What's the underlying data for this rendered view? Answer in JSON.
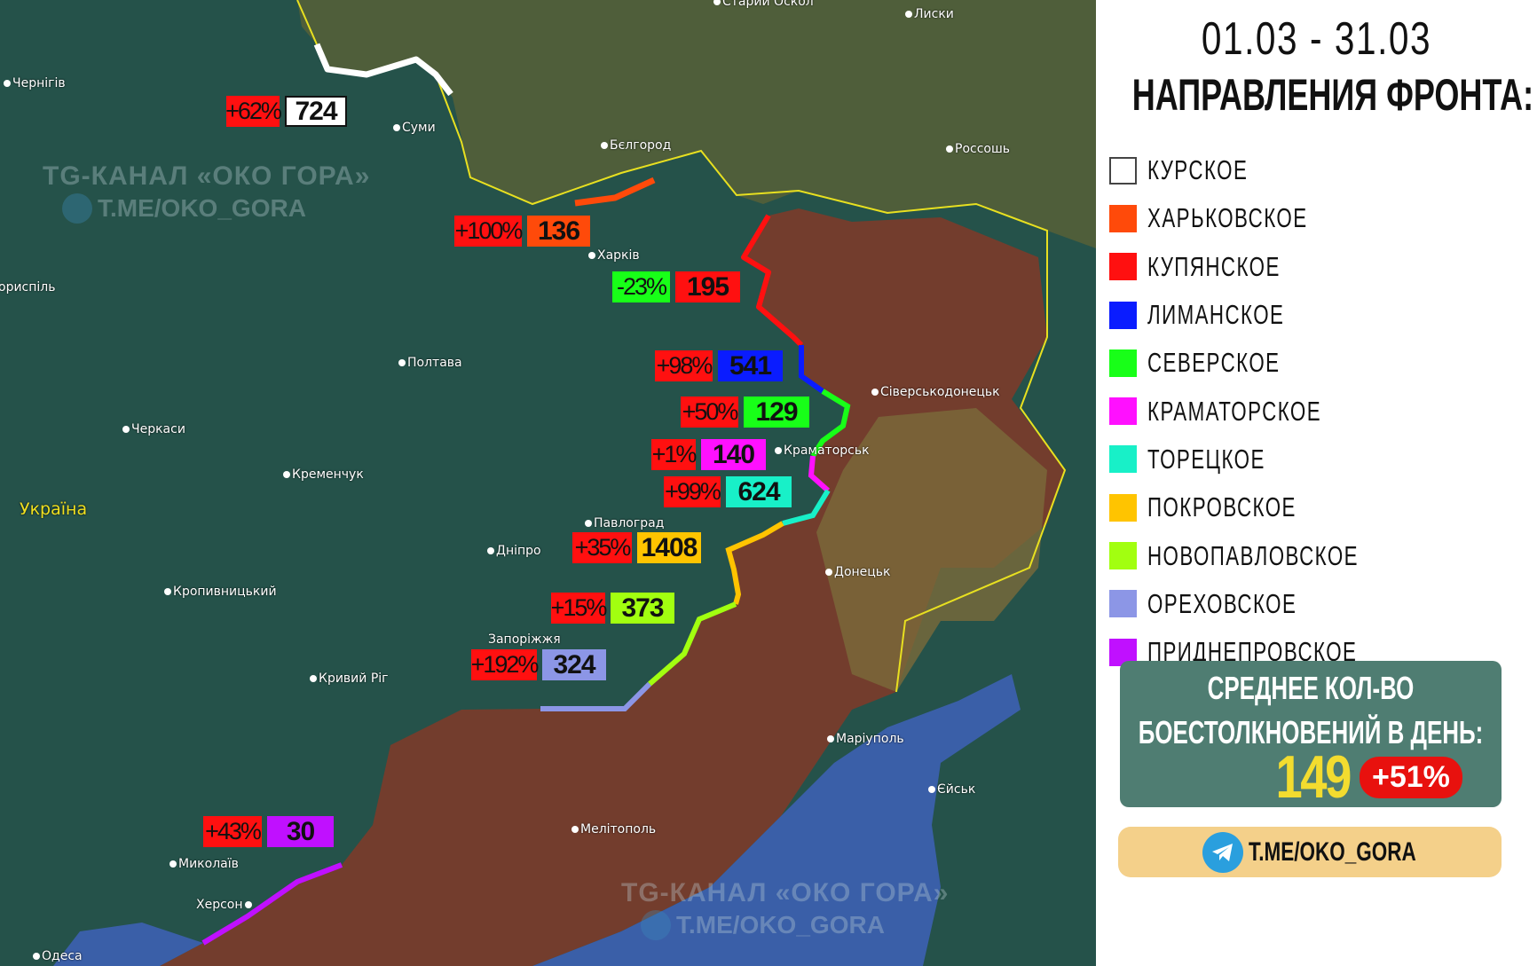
{
  "header": {
    "date_range": "01.03 - 31.03",
    "title": "НАПРАВЛЕНИЯ ФРОНТА:"
  },
  "legend": [
    {
      "label": "КУРСКОЕ",
      "color": "#ffffff"
    },
    {
      "label": "ХАРЬКОВСКОЕ",
      "color": "#ff4a0a"
    },
    {
      "label": "КУПЯНСКОЕ",
      "color": "#ff1010"
    },
    {
      "label": "ЛИМАНСКОЕ",
      "color": "#0a1cff"
    },
    {
      "label": "СЕВЕРСКОЕ",
      "color": "#18ff18"
    },
    {
      "label": "КРАМАТОРСКОЕ",
      "color": "#ff10ff"
    },
    {
      "label": "ТОРЕЦКОЕ",
      "color": "#18f0c8"
    },
    {
      "label": "ПОКРОВСКОЕ",
      "color": "#ffc400"
    },
    {
      "label": "НОВОПАВЛОВСКОЕ",
      "color": "#a2ff10"
    },
    {
      "label": "ОРЕХОВСКОЕ",
      "color": "#8c96e6"
    },
    {
      "label": "ПРИДНЕПРОВСКОЕ",
      "color": "#c010ff"
    }
  ],
  "stats": {
    "line1": "СРЕДНЕЕ КОЛ-ВО",
    "line2": "БОЕСТОЛКНОВЕНИЙ В ДЕНЬ:",
    "value": "149",
    "change": "+51%"
  },
  "telegram": {
    "link": "T.ME/OKO_GORA"
  },
  "map": {
    "labels": [
      {
        "direction": "КУРСКОЕ",
        "change": "+62%",
        "value": "724",
        "change_color": "#ff1010",
        "value_color": "#ffffff"
      },
      {
        "direction": "ХАРЬКОВСКОЕ",
        "change": "+100%",
        "value": "136",
        "change_color": "#ff1010",
        "value_color": "#ff4a0a"
      },
      {
        "direction": "КУПЯНСКОЕ",
        "change": "-23%",
        "value": "195",
        "change_color": "#18ff18",
        "value_color": "#ff1010"
      },
      {
        "direction": "ЛИМАНСКОЕ",
        "change": "+98%",
        "value": "541",
        "change_color": "#ff1010",
        "value_color": "#0a1cff"
      },
      {
        "direction": "СЕВЕРСКОЕ",
        "change": "+50%",
        "value": "129",
        "change_color": "#ff1010",
        "value_color": "#18ff18"
      },
      {
        "direction": "КРАМАТОРСКОЕ",
        "change": "+1%",
        "value": "140",
        "change_color": "#ff1010",
        "value_color": "#ff10ff"
      },
      {
        "direction": "ТОРЕЦКОЕ",
        "change": "+99%",
        "value": "624",
        "change_color": "#ff1010",
        "value_color": "#18f0c8"
      },
      {
        "direction": "ПОКРОВСКОЕ",
        "change": "+35%",
        "value": "1408",
        "change_color": "#ff1010",
        "value_color": "#ffc400"
      },
      {
        "direction": "НОВОПАВЛОВСКОЕ",
        "change": "+15%",
        "value": "373",
        "change_color": "#ff1010",
        "value_color": "#a2ff10"
      },
      {
        "direction": "ОРЕХОВСКОЕ",
        "change": "+192%",
        "value": "324",
        "change_color": "#ff1010",
        "value_color": "#8c96e6"
      },
      {
        "direction": "ПРИДНЕПРОВСКОЕ",
        "change": "+43%",
        "value": "30",
        "change_color": "#ff1010",
        "value_color": "#c010ff"
      }
    ],
    "cities": [
      "Чернігів",
      "Суми",
      "Бєлгород",
      "Харків",
      "Старий Оскол",
      "Лиски",
      "Россошь",
      "ориспіль",
      "Полтава",
      "Черкаси",
      "Кременчук",
      "Павлоград",
      "Дніпро",
      "Кропивницький",
      "Запоріжжя",
      "Кривий Ріг",
      "Миколаїв",
      "Херсон",
      "Одеса",
      "Мелітополь",
      "Маріуполь",
      "Єйськ",
      "Донецьк",
      "Краматорськ",
      "Сіверськодонецьк"
    ],
    "country": "Україна",
    "watermarks": [
      {
        "line1": "TG-КАНАЛ «ОКО ГОРА»",
        "line2": "T.ME/OKO_GORA"
      }
    ]
  }
}
